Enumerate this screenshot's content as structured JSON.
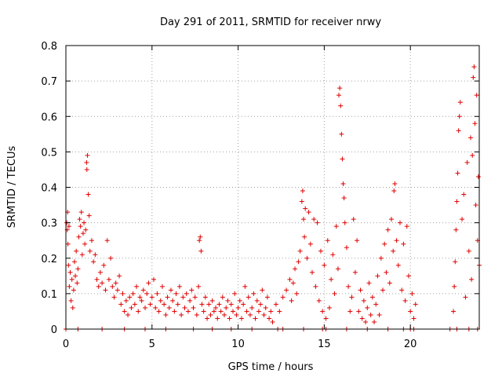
{
  "chart_data": {
    "type": "scatter",
    "title": "Day 291 of 2011, SRMTID for receiver nrwy",
    "xlabel": "GPS time / hours",
    "ylabel": "SRMTID / TECUs",
    "xlim": [
      0,
      24
    ],
    "ylim": [
      0,
      0.8
    ],
    "xticks": [
      0,
      5,
      10,
      15,
      20
    ],
    "yticks": [
      0,
      0.1,
      0.2,
      0.3,
      0.4,
      0.5,
      0.6,
      0.7,
      0.8
    ],
    "grid": true,
    "marker": "+",
    "color": "#e00000",
    "series": [
      {
        "name": "SRMTID",
        "points": [
          [
            0.05,
            0.3
          ],
          [
            0.08,
            0.28
          ],
          [
            0.1,
            0.33
          ],
          [
            0.12,
            0.24
          ],
          [
            0.15,
            0.18
          ],
          [
            0.18,
            0.29
          ],
          [
            0.2,
            0.12
          ],
          [
            0.25,
            0.16
          ],
          [
            0.3,
            0.08
          ],
          [
            0.35,
            0.14
          ],
          [
            0.4,
            0.06
          ],
          [
            0.45,
            0.11
          ],
          [
            0.5,
            0.19
          ],
          [
            0.55,
            0.15
          ],
          [
            0.6,
            0.22
          ],
          [
            0.65,
            0.13
          ],
          [
            0.7,
            0.17
          ],
          [
            0.75,
            0.26
          ],
          [
            0.8,
            0.31
          ],
          [
            0.85,
            0.29
          ],
          [
            0.9,
            0.33
          ],
          [
            0.95,
            0.21
          ],
          [
            1.0,
            0.27
          ],
          [
            1.05,
            0.3
          ],
          [
            1.1,
            0.24
          ],
          [
            1.15,
            0.28
          ],
          [
            1.2,
            0.47
          ],
          [
            1.22,
            0.45
          ],
          [
            1.25,
            0.49
          ],
          [
            1.3,
            0.38
          ],
          [
            1.35,
            0.32
          ],
          [
            1.4,
            0.22
          ],
          [
            1.5,
            0.25
          ],
          [
            1.6,
            0.19
          ],
          [
            1.7,
            0.21
          ],
          [
            1.8,
            0.14
          ],
          [
            1.9,
            0.12
          ],
          [
            2.0,
            0.16
          ],
          [
            2.1,
            0.13
          ],
          [
            2.2,
            0.18
          ],
          [
            2.3,
            0.11
          ],
          [
            2.4,
            0.25
          ],
          [
            2.5,
            0.14
          ],
          [
            2.6,
            0.2
          ],
          [
            2.7,
            0.12
          ],
          [
            2.8,
            0.09
          ],
          [
            2.9,
            0.13
          ],
          [
            3.0,
            0.11
          ],
          [
            3.1,
            0.15
          ],
          [
            3.2,
            0.07
          ],
          [
            3.3,
            0.1
          ],
          [
            3.4,
            0.05
          ],
          [
            3.5,
            0.08
          ],
          [
            3.6,
            0.04
          ],
          [
            3.7,
            0.09
          ],
          [
            3.8,
            0.06
          ],
          [
            3.9,
            0.1
          ],
          [
            4.0,
            0.07
          ],
          [
            4.1,
            0.12
          ],
          [
            4.2,
            0.05
          ],
          [
            4.3,
            0.09
          ],
          [
            4.4,
            0.08
          ],
          [
            4.5,
            0.11
          ],
          [
            4.6,
            0.06
          ],
          [
            4.7,
            0.1
          ],
          [
            4.8,
            0.13
          ],
          [
            4.9,
            0.07
          ],
          [
            5.0,
            0.09
          ],
          [
            5.1,
            0.14
          ],
          [
            5.2,
            0.06
          ],
          [
            5.3,
            0.1
          ],
          [
            5.4,
            0.05
          ],
          [
            5.5,
            0.08
          ],
          [
            5.6,
            0.12
          ],
          [
            5.7,
            0.07
          ],
          [
            5.8,
            0.04
          ],
          [
            5.9,
            0.09
          ],
          [
            6.0,
            0.06
          ],
          [
            6.1,
            0.11
          ],
          [
            6.2,
            0.08
          ],
          [
            6.3,
            0.05
          ],
          [
            6.4,
            0.1
          ],
          [
            6.5,
            0.07
          ],
          [
            6.6,
            0.12
          ],
          [
            6.7,
            0.04
          ],
          [
            6.8,
            0.09
          ],
          [
            6.9,
            0.06
          ],
          [
            7.0,
            0.1
          ],
          [
            7.1,
            0.05
          ],
          [
            7.2,
            0.08
          ],
          [
            7.3,
            0.11
          ],
          [
            7.4,
            0.06
          ],
          [
            7.5,
            0.09
          ],
          [
            7.6,
            0.04
          ],
          [
            7.7,
            0.12
          ],
          [
            7.75,
            0.25
          ],
          [
            7.8,
            0.26
          ],
          [
            7.85,
            0.22
          ],
          [
            7.9,
            0.07
          ],
          [
            8.0,
            0.05
          ],
          [
            8.1,
            0.09
          ],
          [
            8.2,
            0.03
          ],
          [
            8.3,
            0.07
          ],
          [
            8.4,
            0.04
          ],
          [
            8.5,
            0.08
          ],
          [
            8.6,
            0.05
          ],
          [
            8.7,
            0.06
          ],
          [
            8.8,
            0.03
          ],
          [
            8.9,
            0.07
          ],
          [
            9.0,
            0.05
          ],
          [
            9.1,
            0.09
          ],
          [
            9.2,
            0.04
          ],
          [
            9.3,
            0.06
          ],
          [
            9.4,
            0.08
          ],
          [
            9.5,
            0.03
          ],
          [
            9.6,
            0.07
          ],
          [
            9.7,
            0.05
          ],
          [
            9.8,
            0.1
          ],
          [
            9.9,
            0.04
          ],
          [
            10.0,
            0.06
          ],
          [
            10.1,
            0.08
          ],
          [
            10.2,
            0.03
          ],
          [
            10.3,
            0.07
          ],
          [
            10.4,
            0.12
          ],
          [
            10.5,
            0.05
          ],
          [
            10.6,
            0.09
          ],
          [
            10.7,
            0.04
          ],
          [
            10.8,
            0.06
          ],
          [
            10.9,
            0.1
          ],
          [
            11.0,
            0.03
          ],
          [
            11.1,
            0.08
          ],
          [
            11.2,
            0.05
          ],
          [
            11.3,
            0.07
          ],
          [
            11.4,
            0.11
          ],
          [
            11.5,
            0.04
          ],
          [
            11.6,
            0.06
          ],
          [
            11.7,
            0.09
          ],
          [
            11.8,
            0.03
          ],
          [
            11.9,
            0.05
          ],
          [
            12.0,
            0.02
          ],
          [
            12.2,
            0.07
          ],
          [
            12.4,
            0.05
          ],
          [
            12.6,
            0.09
          ],
          [
            12.8,
            0.11
          ],
          [
            13.0,
            0.14
          ],
          [
            13.1,
            0.08
          ],
          [
            13.2,
            0.13
          ],
          [
            13.3,
            0.17
          ],
          [
            13.4,
            0.1
          ],
          [
            13.5,
            0.19
          ],
          [
            13.6,
            0.22
          ],
          [
            13.7,
            0.36
          ],
          [
            13.75,
            0.39
          ],
          [
            13.8,
            0.31
          ],
          [
            13.85,
            0.26
          ],
          [
            13.9,
            0.34
          ],
          [
            14.0,
            0.2
          ],
          [
            14.1,
            0.33
          ],
          [
            14.2,
            0.24
          ],
          [
            14.3,
            0.16
          ],
          [
            14.4,
            0.31
          ],
          [
            14.5,
            0.12
          ],
          [
            14.6,
            0.3
          ],
          [
            14.7,
            0.08
          ],
          [
            14.8,
            0.22
          ],
          [
            14.9,
            0.05
          ],
          [
            15.0,
            0.18
          ],
          [
            15.1,
            0.03
          ],
          [
            15.2,
            0.25
          ],
          [
            15.3,
            0.06
          ],
          [
            15.4,
            0.14
          ],
          [
            15.5,
            0.21
          ],
          [
            15.6,
            0.1
          ],
          [
            15.7,
            0.29
          ],
          [
            15.8,
            0.17
          ],
          [
            15.85,
            0.66
          ],
          [
            15.9,
            0.68
          ],
          [
            15.95,
            0.63
          ],
          [
            16.0,
            0.55
          ],
          [
            16.05,
            0.48
          ],
          [
            16.1,
            0.41
          ],
          [
            16.15,
            0.37
          ],
          [
            16.2,
            0.3
          ],
          [
            16.3,
            0.23
          ],
          [
            16.4,
            0.12
          ],
          [
            16.5,
            0.05
          ],
          [
            16.6,
            0.09
          ],
          [
            16.7,
            0.31
          ],
          [
            16.8,
            0.16
          ],
          [
            16.9,
            0.25
          ],
          [
            17.0,
            0.05
          ],
          [
            17.1,
            0.11
          ],
          [
            17.2,
            0.03
          ],
          [
            17.3,
            0.08
          ],
          [
            17.4,
            0.02
          ],
          [
            17.5,
            0.06
          ],
          [
            17.6,
            0.13
          ],
          [
            17.7,
            0.04
          ],
          [
            17.8,
            0.09
          ],
          [
            17.9,
            0.02
          ],
          [
            18.0,
            0.07
          ],
          [
            18.1,
            0.15
          ],
          [
            18.2,
            0.04
          ],
          [
            18.3,
            0.2
          ],
          [
            18.4,
            0.11
          ],
          [
            18.5,
            0.24
          ],
          [
            18.6,
            0.16
          ],
          [
            18.7,
            0.28
          ],
          [
            18.8,
            0.13
          ],
          [
            18.9,
            0.31
          ],
          [
            19.0,
            0.22
          ],
          [
            19.05,
            0.39
          ],
          [
            19.1,
            0.41
          ],
          [
            19.2,
            0.25
          ],
          [
            19.3,
            0.18
          ],
          [
            19.4,
            0.3
          ],
          [
            19.5,
            0.11
          ],
          [
            19.6,
            0.24
          ],
          [
            19.7,
            0.08
          ],
          [
            19.8,
            0.29
          ],
          [
            19.9,
            0.15
          ],
          [
            20.0,
            0.05
          ],
          [
            20.1,
            0.1
          ],
          [
            20.2,
            0.03
          ],
          [
            20.3,
            0.07
          ],
          [
            22.5,
            0.05
          ],
          [
            22.55,
            0.12
          ],
          [
            22.6,
            0.19
          ],
          [
            22.65,
            0.28
          ],
          [
            22.7,
            0.36
          ],
          [
            22.75,
            0.44
          ],
          [
            22.8,
            0.56
          ],
          [
            22.85,
            0.6
          ],
          [
            22.9,
            0.64
          ],
          [
            23.0,
            0.31
          ],
          [
            23.1,
            0.38
          ],
          [
            23.2,
            0.09
          ],
          [
            23.3,
            0.47
          ],
          [
            23.4,
            0.22
          ],
          [
            23.5,
            0.54
          ],
          [
            23.55,
            0.14
          ],
          [
            23.6,
            0.49
          ],
          [
            23.65,
            0.71
          ],
          [
            23.7,
            0.74
          ],
          [
            23.75,
            0.58
          ],
          [
            23.8,
            0.35
          ],
          [
            23.85,
            0.66
          ],
          [
            23.9,
            0.25
          ],
          [
            23.95,
            0.43
          ],
          [
            24.0,
            0.18
          ]
        ],
        "zero_points": [
          0.0,
          0.7,
          2.1,
          3.4,
          4.6,
          5.8,
          7.4,
          8.5,
          9.6,
          10.8,
          12.3,
          12.6,
          13.8,
          14.9,
          15.1,
          16.3,
          17.5,
          18.7,
          19.6,
          20.0,
          20.2,
          22.3,
          22.7,
          23.4,
          23.9
        ]
      }
    ]
  }
}
